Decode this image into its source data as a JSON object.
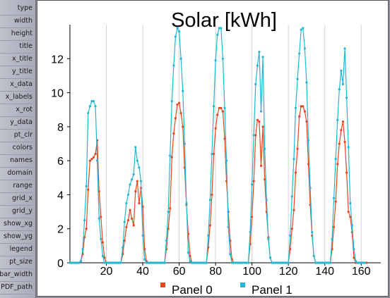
{
  "sidebar": {
    "items": [
      "type",
      "width",
      "height",
      "title",
      "x_title",
      "y_title",
      "x_data",
      "x_labels",
      "x_rot",
      "y_data",
      "pt_clr",
      "colors",
      "names",
      "domain",
      "range",
      "grid_x",
      "grid_y",
      "show_xg",
      "show_yg",
      "legend",
      "pt_size",
      "bar_width",
      "PDF_path"
    ]
  },
  "colors": {
    "panel0": "#e8461c",
    "panel1": "#1fb9d6"
  },
  "chart_data": {
    "type": "line",
    "title": "Solar [kWh]",
    "xlabel": "",
    "ylabel": "",
    "xlim": [
      0,
      170
    ],
    "ylim": [
      0,
      14
    ],
    "x_ticks": [
      20,
      40,
      60,
      80,
      100,
      120,
      140,
      160
    ],
    "y_ticks": [
      0,
      2,
      4,
      6,
      8,
      10,
      12
    ],
    "grid_x": true,
    "grid_y": false,
    "legend_position": "bottom",
    "x_start": 0,
    "series": [
      {
        "name": "Panel 0",
        "values": [
          0,
          0,
          0,
          0,
          0,
          0,
          0.1,
          0.5,
          1.5,
          2.0,
          4.3,
          6.0,
          6.1,
          6.2,
          6.4,
          7.2,
          4.2,
          2.7,
          1.2,
          0.3,
          0,
          0,
          0,
          0,
          0,
          0,
          0,
          0,
          0,
          0.5,
          1.3,
          2.1,
          2.5,
          3.1,
          2.6,
          2.2,
          4.2,
          4.8,
          3.5,
          4.4,
          3.3,
          0.8,
          0.1,
          0,
          0,
          0,
          0,
          0,
          0,
          0,
          0,
          0,
          0,
          0.8,
          2.0,
          3.2,
          6.2,
          7.6,
          8.5,
          9.3,
          9.4,
          8.8,
          8.0,
          5.6,
          3.4,
          1.7,
          0.4,
          0,
          0,
          0,
          0,
          0,
          0,
          0,
          0,
          0,
          0.9,
          2.2,
          4.0,
          6.4,
          7.9,
          8.7,
          9.1,
          9.1,
          8.9,
          7.3,
          4.8,
          3.0,
          1.3,
          0.2,
          0,
          0,
          0,
          0,
          0,
          0,
          0,
          0,
          0,
          1.1,
          2.7,
          4.8,
          7.5,
          8.4,
          8.3,
          5.7,
          8.0,
          4.9,
          3.0,
          1.5,
          0.3,
          0,
          0,
          0,
          0,
          0,
          0,
          0,
          0,
          0,
          0,
          0.8,
          2.0,
          3.1,
          5.3,
          6.7,
          8.6,
          9.2,
          9.2,
          8.9,
          8.3,
          5.8,
          3.4,
          1.6,
          0.4,
          0,
          0,
          0,
          0,
          0,
          0,
          0,
          0,
          0,
          0.8,
          2.1,
          3.6,
          5.8,
          7.0,
          7.8,
          8.3,
          7.1,
          5.3,
          3.0,
          2.7,
          1.8,
          0.3,
          0,
          0,
          0,
          0,
          0,
          0,
          0
        ]
      },
      {
        "name": "Panel 1",
        "values": [
          0,
          0,
          0,
          0,
          0,
          0,
          0.1,
          0.8,
          2.5,
          4.5,
          8.8,
          9.2,
          9.5,
          9.5,
          9.2,
          6.0,
          2.6,
          1.4,
          0.4,
          0,
          0,
          0,
          0,
          0,
          0,
          0,
          0,
          0,
          0,
          0.9,
          2.4,
          3.5,
          4.0,
          4.6,
          4.9,
          5.2,
          6.8,
          6.0,
          5.6,
          4.8,
          1.6,
          0.2,
          0,
          0,
          0,
          0,
          0,
          0,
          0,
          0,
          0,
          0,
          0,
          1.3,
          3.0,
          6.3,
          9.5,
          11.6,
          13.3,
          13.8,
          13.6,
          12.0,
          10.1,
          7.0,
          3.5,
          0.6,
          0.1,
          0,
          0,
          0,
          0,
          0,
          0,
          0,
          0,
          0,
          1.6,
          3.7,
          6.4,
          9.2,
          11.9,
          13.4,
          13.8,
          13.8,
          12.0,
          9.1,
          6.0,
          2.1,
          0.5,
          0,
          0,
          0,
          0,
          0,
          0,
          0,
          0,
          0,
          0,
          1.8,
          4.6,
          7.5,
          10.5,
          11.6,
          12.4,
          8.9,
          12.1,
          6.7,
          3.7,
          1.4,
          0.3,
          0,
          0,
          0,
          0,
          0,
          0,
          0,
          0,
          0,
          0,
          1.6,
          3.9,
          6.1,
          9.1,
          10.8,
          12.3,
          13.7,
          13.8,
          12.6,
          10.6,
          7.2,
          4.4,
          1.8,
          0.4,
          0,
          0,
          0,
          0,
          0,
          0,
          0,
          0,
          0,
          1.4,
          3.8,
          6.1,
          8.4,
          10.2,
          11.3,
          10.5,
          12.6,
          9.7,
          6.8,
          3.5,
          2.2,
          0.8,
          0.1,
          0,
          0,
          0,
          0,
          0
        ]
      }
    ]
  }
}
